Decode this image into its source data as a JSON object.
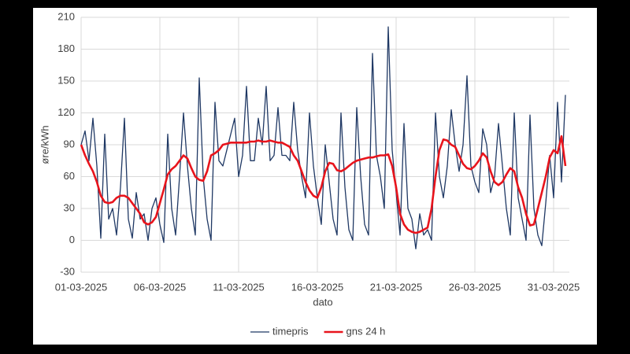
{
  "chart_data": {
    "type": "line",
    "x_label": "dato",
    "y_label": "øre/kWh",
    "x": [
      0,
      6,
      12,
      18,
      24,
      30,
      36,
      42,
      48,
      54,
      60,
      66,
      72,
      78,
      84,
      90,
      96,
      102,
      108,
      114,
      120,
      126,
      132,
      138,
      144,
      150,
      156,
      162,
      168,
      174,
      180,
      186,
      192,
      198,
      204,
      210,
      216,
      222,
      228,
      234,
      240,
      246,
      252,
      258,
      264,
      270,
      276,
      282,
      288,
      294,
      300,
      306,
      312,
      318,
      324,
      330,
      336,
      342,
      348,
      354,
      360,
      366,
      372,
      378,
      384,
      390,
      396,
      402,
      408,
      414,
      420,
      426,
      432,
      438,
      444,
      450,
      456,
      462,
      468,
      474,
      480,
      486,
      492,
      498,
      504,
      510,
      516,
      522,
      528,
      534,
      540,
      546,
      552,
      558,
      564,
      570,
      576,
      582,
      588,
      594,
      600,
      606,
      612,
      618,
      624,
      630,
      636,
      642,
      648,
      654,
      660,
      666,
      672,
      678,
      684,
      690,
      696,
      702,
      708,
      714,
      720,
      726,
      732,
      738
    ],
    "series": [
      {
        "name": "timepris",
        "color": "#1f3864",
        "width": 1.3,
        "values": [
          90,
          103,
          75,
          115,
          70,
          2,
          100,
          20,
          30,
          5,
          50,
          115,
          20,
          2,
          45,
          20,
          25,
          0,
          30,
          40,
          15,
          -2,
          100,
          30,
          5,
          60,
          120,
          70,
          30,
          5,
          153,
          60,
          20,
          0,
          130,
          75,
          70,
          85,
          100,
          115,
          60,
          80,
          145,
          75,
          75,
          115,
          90,
          145,
          75,
          80,
          125,
          80,
          80,
          75,
          130,
          85,
          60,
          40,
          120,
          70,
          40,
          15,
          90,
          55,
          20,
          5,
          120,
          50,
          10,
          0,
          125,
          60,
          15,
          5,
          176,
          80,
          60,
          30,
          201,
          85,
          45,
          5,
          110,
          30,
          20,
          -8,
          25,
          5,
          10,
          0,
          120,
          60,
          40,
          70,
          123,
          90,
          65,
          90,
          155,
          70,
          55,
          45,
          105,
          90,
          45,
          60,
          110,
          70,
          30,
          5,
          120,
          40,
          20,
          0,
          118,
          30,
          5,
          -5,
          35,
          80,
          40,
          130,
          55,
          137
        ]
      },
      {
        "name": "gns 24 h",
        "color": "#e8141c",
        "width": 2.6,
        "values": [
          90,
          80,
          72,
          65,
          55,
          42,
          36,
          35,
          36,
          40,
          42,
          42,
          40,
          35,
          30,
          25,
          17,
          15,
          17,
          22,
          35,
          48,
          62,
          67,
          70,
          75,
          80,
          77,
          68,
          60,
          57,
          56,
          65,
          80,
          82,
          85,
          90,
          91,
          92,
          92,
          92,
          92,
          92,
          93,
          93,
          94,
          93,
          93,
          94,
          93,
          92,
          92,
          90,
          88,
          80,
          75,
          65,
          55,
          47,
          42,
          40,
          50,
          65,
          73,
          72,
          66,
          65,
          67,
          70,
          73,
          75,
          76,
          77,
          78,
          78,
          79,
          80,
          80,
          81,
          70,
          50,
          25,
          15,
          10,
          8,
          7,
          8,
          10,
          12,
          30,
          60,
          85,
          95,
          94,
          90,
          88,
          80,
          72,
          68,
          67,
          70,
          75,
          82,
          78,
          65,
          55,
          52,
          55,
          62,
          68,
          65,
          50,
          40,
          25,
          14,
          15,
          30,
          45,
          60,
          78,
          85,
          82,
          98,
          70
        ]
      }
    ],
    "xlim": [
      0,
      744
    ],
    "xticks": [
      {
        "value": 0,
        "label": "01-03-2025"
      },
      {
        "value": 120,
        "label": "06-03-2025"
      },
      {
        "value": 240,
        "label": "11-03-2025"
      },
      {
        "value": 360,
        "label": "16-03-2025"
      },
      {
        "value": 480,
        "label": "21-03-2025"
      },
      {
        "value": 600,
        "label": "26-03-2025"
      },
      {
        "value": 720,
        "label": "31-03-2025"
      }
    ],
    "ylim": [
      -30,
      210
    ],
    "yticks": [
      -30,
      0,
      30,
      60,
      90,
      120,
      150,
      180,
      210
    ],
    "grid": true,
    "legend": "bottom"
  }
}
